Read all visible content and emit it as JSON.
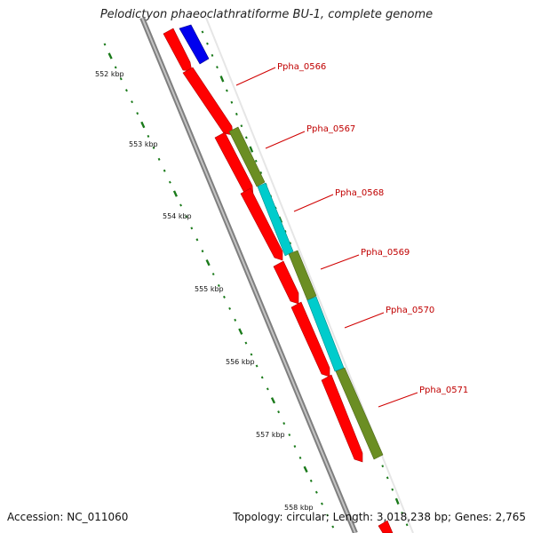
{
  "header": {
    "title": "Pelodictyon phaeoclathratiforme BU-1, complete genome"
  },
  "footer": {
    "accession": "Accession: NC_011060",
    "topology": "Topology: circular; Length: 3,018,238 bp; Genes: 2,765"
  },
  "ruler": {
    "ticks": [
      "552 kbp",
      "553 kbp",
      "554 kbp",
      "555 kbp",
      "556 kbp",
      "557 kbp",
      "558 kbp"
    ]
  },
  "colors": {
    "forward_cds": "#ff0000",
    "reverse_cds": "#0000ee",
    "cog_olive": "#6b8e23",
    "cog_cyan": "#00cccc",
    "backbone": "#8c8c8c",
    "tick": "#1a7a1a",
    "label": "#c00000"
  },
  "genes": [
    {
      "name": "Ppha_0566"
    },
    {
      "name": "Ppha_0567"
    },
    {
      "name": "Ppha_0568"
    },
    {
      "name": "Ppha_0569"
    },
    {
      "name": "Ppha_0570"
    },
    {
      "name": "Ppha_0571"
    }
  ]
}
